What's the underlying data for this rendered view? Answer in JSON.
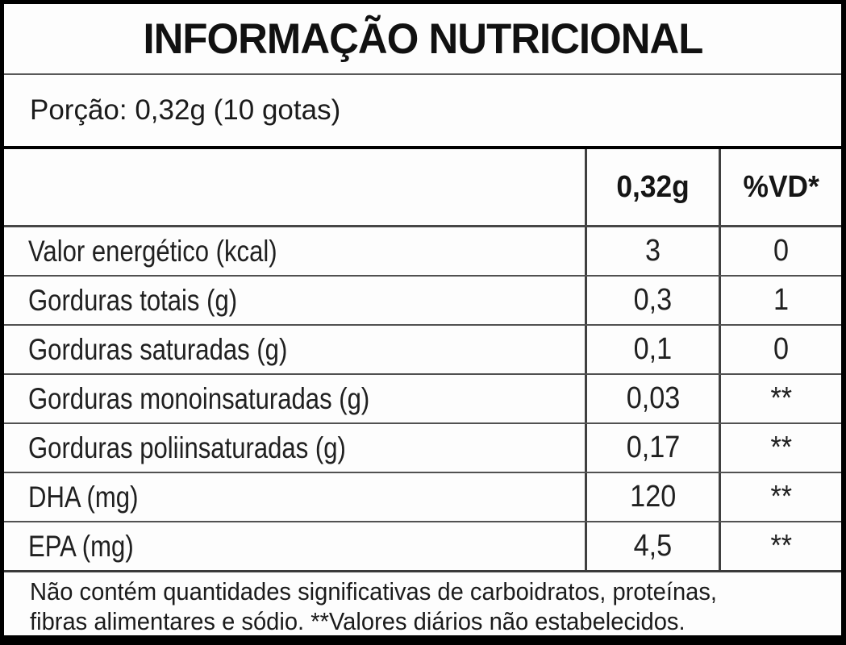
{
  "header": {
    "title": "INFORMAÇÃO NUTRICIONAL"
  },
  "portion": {
    "text": "Porção: 0,32g (10 gotas)"
  },
  "table": {
    "columns": {
      "amount": "0,32g",
      "dv": "%VD*"
    },
    "rows": [
      {
        "label": "Valor energético (kcal)",
        "amount": "3",
        "dv": "0"
      },
      {
        "label": "Gorduras totais (g)",
        "amount": "0,3",
        "dv": "1"
      },
      {
        "label": "Gorduras saturadas (g)",
        "amount": "0,1",
        "dv": "0"
      },
      {
        "label": "Gorduras monoinsaturadas (g)",
        "amount": "0,03",
        "dv": "**"
      },
      {
        "label": "Gorduras poliinsaturadas (g)",
        "amount": "0,17",
        "dv": "**"
      },
      {
        "label": "DHA (mg)",
        "amount": "120",
        "dv": "**"
      },
      {
        "label": "EPA (mg)",
        "amount": "4,5",
        "dv": "**"
      }
    ]
  },
  "footnote": {
    "line1": "Não contém quantidades significativas de carboidratos, proteínas,",
    "line2": "fibras alimentares e sódio. **Valores diários não estabelecidos."
  },
  "colors": {
    "background": "#fdfdfd",
    "outer_border": "#000000",
    "inner_border": "#4f4f4f",
    "text": "#1d1d1d"
  }
}
